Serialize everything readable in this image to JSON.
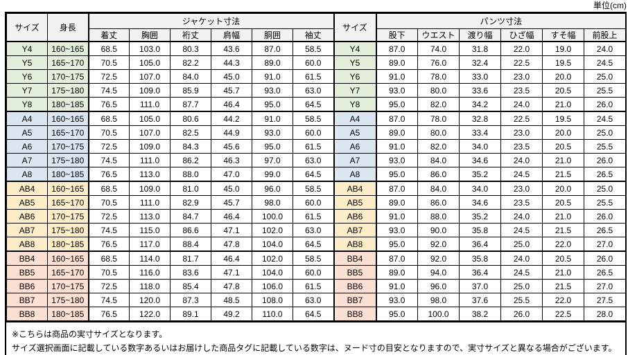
{
  "unit_label": "単位(cm)",
  "colors": {
    "header_bg": "#f2f2f0",
    "border": "#000000",
    "row_groups": {
      "Y": "#e3efda",
      "A": "#dce6f1",
      "AB": "#fdeec9",
      "BB": "#fbe0d3"
    }
  },
  "table": {
    "header": {
      "size": "サイズ",
      "height": "身長",
      "jacket_group": "ジャケット寸法",
      "pants_group": "パンツ寸法",
      "size2": "サイズ",
      "jacket_cols": [
        "着丈",
        "胸囲",
        "裄丈",
        "肩幅",
        "胴囲",
        "袖丈"
      ],
      "pants_cols": [
        "股下",
        "ウエスト",
        "渡り幅",
        "ひざ幅",
        "すそ幅",
        "前股上"
      ]
    },
    "rows": [
      {
        "group": "Y",
        "size": "Y4",
        "height": "160~165",
        "jacket": [
          "68.5",
          "103.0",
          "80.3",
          "43.6",
          "87.0",
          "58.5"
        ],
        "pants": [
          "87.0",
          "74.0",
          "31.8",
          "22.0",
          "19.0",
          "24.0"
        ]
      },
      {
        "group": "Y",
        "size": "Y5",
        "height": "165~170",
        "jacket": [
          "70.5",
          "105.0",
          "82.2",
          "44.3",
          "89.0",
          "60.0"
        ],
        "pants": [
          "89.0",
          "76.0",
          "32.4",
          "22.5",
          "19.5",
          "24.5"
        ]
      },
      {
        "group": "Y",
        "size": "Y6",
        "height": "170~175",
        "jacket": [
          "72.5",
          "107.0",
          "84.0",
          "45.0",
          "91.0",
          "61.5"
        ],
        "pants": [
          "91.0",
          "78.0",
          "33.0",
          "23.0",
          "20.0",
          "25.0"
        ]
      },
      {
        "group": "Y",
        "size": "Y7",
        "height": "175~180",
        "jacket": [
          "74.5",
          "109.0",
          "85.9",
          "45.7",
          "93.0",
          "63.0"
        ],
        "pants": [
          "93.0",
          "80.0",
          "33.6",
          "23.5",
          "20.5",
          "25.5"
        ]
      },
      {
        "group": "Y",
        "size": "Y8",
        "height": "180~185",
        "jacket": [
          "76.5",
          "111.0",
          "87.7",
          "46.4",
          "95.0",
          "64.5"
        ],
        "pants": [
          "95.0",
          "82.0",
          "34.2",
          "24.0",
          "21.0",
          "26.0"
        ]
      },
      {
        "group": "A",
        "size": "A4",
        "height": "160~165",
        "jacket": [
          "68.5",
          "105.0",
          "80.6",
          "44.2",
          "91.0",
          "58.5"
        ],
        "pants": [
          "87.0",
          "78.0",
          "32.8",
          "22.5",
          "19.5",
          "24.5"
        ]
      },
      {
        "group": "A",
        "size": "A5",
        "height": "165~170",
        "jacket": [
          "70.5",
          "107.0",
          "82.5",
          "44.9",
          "93.0",
          "60.0"
        ],
        "pants": [
          "89.0",
          "80.0",
          "33.4",
          "23.0",
          "20.0",
          "25.0"
        ]
      },
      {
        "group": "A",
        "size": "A6",
        "height": "170~175",
        "jacket": [
          "72.5",
          "109.0",
          "84.3",
          "45.6",
          "95.0",
          "61.5"
        ],
        "pants": [
          "91.0",
          "82.0",
          "34.0",
          "23.5",
          "20.5",
          "25.5"
        ]
      },
      {
        "group": "A",
        "size": "A7",
        "height": "175~180",
        "jacket": [
          "74.5",
          "111.0",
          "86.2",
          "46.3",
          "97.0",
          "63.0"
        ],
        "pants": [
          "93.0",
          "84.0",
          "34.6",
          "24.0",
          "21.0",
          "26.0"
        ]
      },
      {
        "group": "A",
        "size": "A8",
        "height": "180~185",
        "jacket": [
          "76.5",
          "113.0",
          "88.0",
          "47.0",
          "99.0",
          "64.5"
        ],
        "pants": [
          "95.0",
          "86.0",
          "35.2",
          "24.5",
          "21.5",
          "26.5"
        ]
      },
      {
        "group": "AB",
        "size": "AB4",
        "height": "160~165",
        "jacket": [
          "68.5",
          "109.0",
          "81.0",
          "45.0",
          "96.0",
          "58.5"
        ],
        "pants": [
          "87.0",
          "84.0",
          "34.0",
          "23.0",
          "20.0",
          "25.0"
        ]
      },
      {
        "group": "AB",
        "size": "AB5",
        "height": "165~170",
        "jacket": [
          "70.5",
          "111.0",
          "82.9",
          "45.7",
          "98.0",
          "60.0"
        ],
        "pants": [
          "89.0",
          "86.0",
          "34.6",
          "23.5",
          "20.5",
          "25.5"
        ]
      },
      {
        "group": "AB",
        "size": "AB6",
        "height": "170~175",
        "jacket": [
          "72.5",
          "113.0",
          "84.7",
          "46.4",
          "100.0",
          "61.5"
        ],
        "pants": [
          "91.0",
          "88.0",
          "35.2",
          "24.0",
          "21.0",
          "26.0"
        ]
      },
      {
        "group": "AB",
        "size": "AB7",
        "height": "175~180",
        "jacket": [
          "74.5",
          "115.0",
          "86.6",
          "47.1",
          "102.0",
          "63.0"
        ],
        "pants": [
          "93.0",
          "90.0",
          "35.8",
          "24.5",
          "21.5",
          "26.5"
        ]
      },
      {
        "group": "AB",
        "size": "AB8",
        "height": "180~185",
        "jacket": [
          "76.5",
          "117.0",
          "88.4",
          "47.8",
          "104.0",
          "64.5"
        ],
        "pants": [
          "95.0",
          "92.0",
          "36.4",
          "25.0",
          "22.0",
          "27.0"
        ]
      },
      {
        "group": "BB",
        "size": "BB4",
        "height": "160~165",
        "jacket": [
          "68.5",
          "114.0",
          "81.7",
          "46.4",
          "102.0",
          "58.5"
        ],
        "pants": [
          "87.0",
          "92.0",
          "35.8",
          "24.0",
          "20.5",
          "26.0"
        ]
      },
      {
        "group": "BB",
        "size": "BB5",
        "height": "165~170",
        "jacket": [
          "70.5",
          "116.0",
          "83.6",
          "47.1",
          "104.0",
          "60.0"
        ],
        "pants": [
          "89.0",
          "94.0",
          "36.4",
          "24.5",
          "21.0",
          "26.5"
        ]
      },
      {
        "group": "BB",
        "size": "BB6",
        "height": "170~175",
        "jacket": [
          "72.5",
          "118.0",
          "85.4",
          "47.8",
          "106.0",
          "61.5"
        ],
        "pants": [
          "91.0",
          "96.0",
          "37.0",
          "25.0",
          "21.5",
          "27.0"
        ]
      },
      {
        "group": "BB",
        "size": "BB7",
        "height": "175~180",
        "jacket": [
          "74.5",
          "120.0",
          "87.3",
          "48.5",
          "108.0",
          "63.0"
        ],
        "pants": [
          "93.0",
          "98.0",
          "37.6",
          "25.5",
          "22.0",
          "27.5"
        ]
      },
      {
        "group": "BB",
        "size": "BB8",
        "height": "180~185",
        "jacket": [
          "76.5",
          "122.0",
          "89.1",
          "49.2",
          "110.0",
          "64.5"
        ],
        "pants": [
          "95.0",
          "100.0",
          "38.2",
          "26.0",
          "22.5",
          "28.0"
        ]
      }
    ]
  },
  "footnotes": [
    "※こちらは商品の実寸サイズとなります。",
    "サイズ選択画面に記載している数字あるいはお届けした商品タグに記載している数字は、ヌード寸の目安となりますので、実寸サイズと異なる場合がございます。"
  ]
}
